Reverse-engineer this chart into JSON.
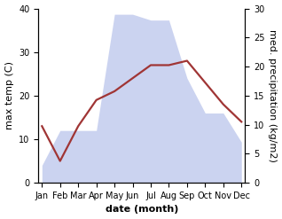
{
  "months": [
    "Jan",
    "Feb",
    "Mar",
    "Apr",
    "May",
    "Jun",
    "Jul",
    "Aug",
    "Sep",
    "Oct",
    "Nov",
    "Dec"
  ],
  "month_indices": [
    0,
    1,
    2,
    3,
    4,
    5,
    6,
    7,
    8,
    9,
    10,
    11
  ],
  "temperature": [
    13,
    5,
    13,
    19,
    21,
    24,
    27,
    27,
    28,
    23,
    18,
    14
  ],
  "precipitation": [
    3,
    9,
    9,
    9,
    29,
    29,
    28,
    28,
    18,
    12,
    12,
    7
  ],
  "temp_ylim": [
    0,
    40
  ],
  "precip_ylim": [
    0,
    30
  ],
  "temp_yticks": [
    0,
    10,
    20,
    30,
    40
  ],
  "precip_yticks": [
    0,
    5,
    10,
    15,
    20,
    25,
    30
  ],
  "line_color": "#a03535",
  "fill_color": "#b0bce8",
  "fill_alpha": 0.65,
  "xlabel": "date (month)",
  "ylabel_left": "max temp (C)",
  "ylabel_right": "med. precipitation (kg/m2)",
  "bg_color": "#ffffff",
  "label_fontsize": 8,
  "tick_fontsize": 7,
  "linewidth": 1.6
}
